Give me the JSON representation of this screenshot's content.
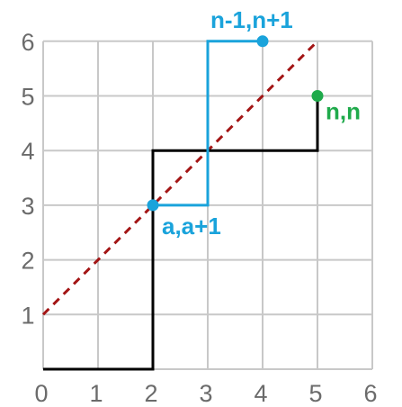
{
  "chart_data": {
    "type": "lattice-path-diagram",
    "x_ticks": [
      "0",
      "1",
      "2",
      "3",
      "4",
      "5",
      "6"
    ],
    "y_ticks": [
      "1",
      "2",
      "3",
      "4",
      "5",
      "6"
    ],
    "xlim": [
      0,
      6
    ],
    "ylim": [
      0,
      6
    ],
    "grid": true,
    "diagonal_line": {
      "from": [
        0,
        1
      ],
      "to": [
        5,
        6
      ],
      "style": "dashed",
      "color": "#a31515"
    },
    "black_path": [
      [
        0,
        0
      ],
      [
        2,
        0
      ],
      [
        2,
        4
      ],
      [
        5,
        4
      ],
      [
        5,
        5
      ]
    ],
    "blue_path": [
      [
        2,
        3
      ],
      [
        3,
        3
      ],
      [
        3,
        6
      ],
      [
        4,
        6
      ]
    ],
    "points": [
      {
        "x": 2,
        "y": 3,
        "color": "#1aa3db",
        "label": "a,a+1"
      },
      {
        "x": 4,
        "y": 6,
        "color": "#1aa3db",
        "label": "n-1,n+1"
      },
      {
        "x": 5,
        "y": 5,
        "color": "#1faa4b",
        "label": "n,n"
      }
    ]
  },
  "colors": {
    "grid": "#c8c8c8",
    "tick_text": "#6b6b6b",
    "black_path": "#000000",
    "blue": "#1aa3db",
    "green": "#1faa4b",
    "diagonal": "#a31515"
  }
}
